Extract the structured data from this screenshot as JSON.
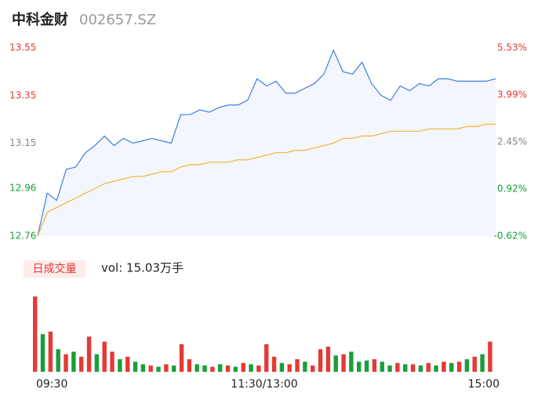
{
  "title": "中科金财",
  "code": "002657.SZ",
  "chart_data": [
    {
      "type": "line",
      "x": [
        0,
        5,
        10,
        15,
        20,
        25,
        30,
        35,
        40,
        45,
        50,
        55,
        60,
        65,
        70,
        75,
        80,
        85,
        90,
        95,
        100,
        105,
        110,
        115,
        120,
        125,
        130,
        135,
        140,
        145,
        150,
        155,
        160,
        165,
        170,
        175,
        180,
        185,
        190,
        195,
        200,
        205,
        210,
        215,
        220,
        225,
        230,
        235,
        240
      ],
      "xlim": [
        0,
        240
      ],
      "series": [
        {
          "color": "#3d7fe0",
          "values": [
            12.76,
            12.94,
            12.91,
            13.04,
            13.05,
            13.11,
            13.14,
            13.18,
            13.14,
            13.17,
            13.15,
            13.16,
            13.17,
            13.16,
            13.15,
            13.27,
            13.27,
            13.29,
            13.28,
            13.3,
            13.31,
            13.31,
            13.33,
            13.42,
            13.39,
            13.41,
            13.36,
            13.36,
            13.38,
            13.4,
            13.44,
            13.54,
            13.45,
            13.44,
            13.49,
            13.4,
            13.35,
            13.33,
            13.39,
            13.37,
            13.4,
            13.39,
            13.42,
            13.42,
            13.41,
            13.41,
            13.41,
            13.41,
            13.42
          ]
        },
        {
          "color": "#f5b335",
          "values": [
            12.76,
            12.86,
            12.88,
            12.9,
            12.92,
            12.94,
            12.96,
            12.98,
            12.99,
            13.0,
            13.01,
            13.01,
            13.02,
            13.03,
            13.03,
            13.05,
            13.06,
            13.06,
            13.07,
            13.07,
            13.07,
            13.08,
            13.08,
            13.09,
            13.1,
            13.11,
            13.11,
            13.12,
            13.12,
            13.13,
            13.14,
            13.15,
            13.17,
            13.17,
            13.18,
            13.18,
            13.19,
            13.2,
            13.2,
            13.2,
            13.2,
            13.21,
            13.21,
            13.21,
            13.21,
            13.22,
            13.22,
            13.23,
            13.23
          ]
        }
      ],
      "ylim": [
        12.76,
        13.55
      ],
      "yticks": [
        12.76,
        12.96,
        13.15,
        13.35,
        13.55
      ],
      "ytick_colors": [
        "#1a9e3a",
        "#1a9e3a",
        "#888888",
        "#e53935",
        "#e53935"
      ],
      "y2lim": [
        -0.62,
        5.53
      ],
      "y2ticks": [
        {
          "value": -0.62,
          "label": "-0.62%"
        },
        {
          "value": 0.92,
          "label": "0.92%"
        },
        {
          "value": 2.45,
          "label": "2.45%"
        },
        {
          "value": 3.99,
          "label": "3.99%"
        },
        {
          "value": 5.53,
          "label": "5.53%"
        }
      ],
      "fill": "#f3f6fd"
    },
    {
      "type": "bar",
      "label": "日成交量",
      "annotation": "vol: 15.03万手",
      "x": [
        0,
        4,
        8,
        12,
        16,
        20,
        24,
        28,
        32,
        36,
        40,
        44,
        48,
        52,
        56,
        60,
        64,
        68,
        72,
        76,
        80,
        84,
        88,
        92,
        96,
        100,
        104,
        108,
        112,
        116,
        120,
        124,
        128,
        132,
        136,
        140,
        144,
        148,
        152,
        156,
        160,
        164,
        168,
        172,
        176,
        180,
        184,
        188,
        192,
        196,
        200,
        204,
        208,
        212,
        216,
        220,
        224,
        228,
        232,
        236
      ],
      "xlim": [
        0,
        240
      ],
      "xticks": [
        {
          "value": 0,
          "label": "09:30"
        },
        {
          "value": 120,
          "label": "11:30/13:00"
        },
        {
          "value": 240,
          "label": "15:00"
        }
      ],
      "values": [
        3000,
        1500,
        1600,
        900,
        700,
        800,
        600,
        1400,
        700,
        1200,
        800,
        500,
        600,
        400,
        300,
        250,
        200,
        300,
        250,
        1100,
        500,
        300,
        250,
        200,
        300,
        250,
        200,
        350,
        300,
        250,
        1100,
        600,
        350,
        300,
        500,
        400,
        250,
        900,
        1000,
        650,
        700,
        800,
        400,
        450,
        500,
        400,
        250,
        350,
        300,
        300,
        250,
        350,
        250,
        400,
        350,
        400,
        500,
        600,
        700,
        1200
      ],
      "colors": [
        "#e53935",
        "#1a9e3a",
        "#e53935",
        "#1a9e3a",
        "#e53935",
        "#1a9e3a",
        "#e53935",
        "#e53935",
        "#1a9e3a",
        "#e53935",
        "#e53935",
        "#1a9e3a",
        "#e53935",
        "#1a9e3a",
        "#1a9e3a",
        "#e53935",
        "#1a9e3a",
        "#e53935",
        "#1a9e3a",
        "#e53935",
        "#e53935",
        "#1a9e3a",
        "#1a9e3a",
        "#e53935",
        "#1a9e3a",
        "#e53935",
        "#1a9e3a",
        "#e53935",
        "#1a9e3a",
        "#e53935",
        "#e53935",
        "#e53935",
        "#1a9e3a",
        "#e53935",
        "#e53935",
        "#1a9e3a",
        "#e53935",
        "#e53935",
        "#e53935",
        "#1a9e3a",
        "#e53935",
        "#1a9e3a",
        "#1a9e3a",
        "#1a9e3a",
        "#e53935",
        "#1a9e3a",
        "#1a9e3a",
        "#e53935",
        "#1a9e3a",
        "#e53935",
        "#1a9e3a",
        "#e53935",
        "#1a9e3a",
        "#e53935",
        "#1a9e3a",
        "#e53935",
        "#1a9e3a",
        "#e53935",
        "#1a9e3a",
        "#e53935"
      ],
      "ylim": [
        0,
        3000
      ]
    }
  ]
}
